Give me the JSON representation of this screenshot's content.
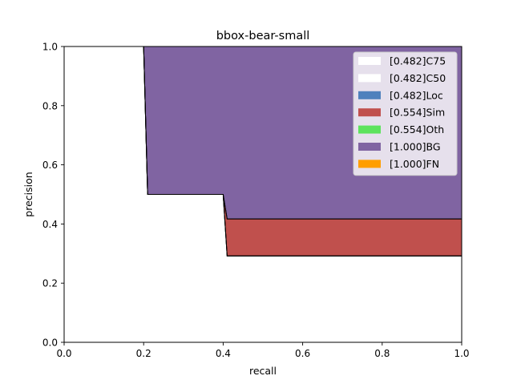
{
  "chart_data": {
    "type": "area",
    "title": "bbox-bear-small",
    "xlabel": "recall",
    "ylabel": "precision",
    "xlim": [
      0,
      1
    ],
    "ylim": [
      0,
      1
    ],
    "x_ticks": [
      "0.0",
      "0.2",
      "0.4",
      "0.6",
      "0.8",
      "1.0"
    ],
    "y_ticks": [
      "0.0",
      "0.2",
      "0.4",
      "0.6",
      "0.8",
      "1.0"
    ],
    "grid": false,
    "legend_position": "top-right",
    "series": [
      {
        "name": "[0.482]C75",
        "color": "#ffffff",
        "points": [
          [
            0,
            1.0
          ],
          [
            0.2,
            1.0
          ],
          [
            0.21,
            0.5
          ],
          [
            0.4,
            0.5
          ],
          [
            0.41,
            0.292
          ],
          [
            1.0,
            0.292
          ]
        ]
      },
      {
        "name": "[0.482]C50",
        "color": "#ffffff",
        "points": [
          [
            0,
            1.0
          ],
          [
            0.2,
            1.0
          ],
          [
            0.21,
            0.5
          ],
          [
            0.4,
            0.5
          ],
          [
            0.41,
            0.292
          ],
          [
            1.0,
            0.292
          ]
        ]
      },
      {
        "name": "[0.482]Loc",
        "color": "#4f81bd",
        "points": [
          [
            0,
            1.0
          ],
          [
            0.2,
            1.0
          ],
          [
            0.21,
            0.5
          ],
          [
            0.4,
            0.5
          ],
          [
            0.41,
            0.292
          ],
          [
            1.0,
            0.292
          ]
        ]
      },
      {
        "name": "[0.554]Sim",
        "color": "#c0504d",
        "points": [
          [
            0,
            1.0
          ],
          [
            0.2,
            1.0
          ],
          [
            0.21,
            0.5
          ],
          [
            0.4,
            0.5
          ],
          [
            0.41,
            0.417
          ],
          [
            1.0,
            0.417
          ]
        ]
      },
      {
        "name": "[0.554]Oth",
        "color": "#5de35d",
        "points": [
          [
            0,
            1.0
          ],
          [
            0.2,
            1.0
          ],
          [
            0.21,
            0.5
          ],
          [
            0.4,
            0.5
          ],
          [
            0.41,
            0.417
          ],
          [
            1.0,
            0.417
          ]
        ]
      },
      {
        "name": "[1.000]BG",
        "color": "#8064a2",
        "points": [
          [
            0,
            1.0
          ],
          [
            1.0,
            1.0
          ]
        ]
      },
      {
        "name": "[1.000]FN",
        "color": "#ff9e00",
        "points": [
          [
            0,
            1.0
          ],
          [
            1.0,
            1.0
          ]
        ]
      }
    ]
  }
}
